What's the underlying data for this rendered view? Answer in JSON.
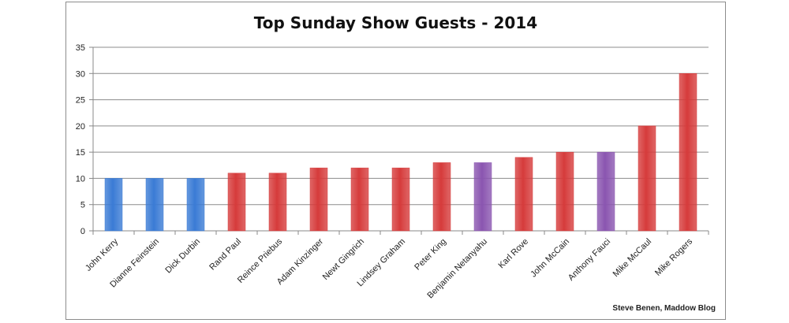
{
  "chart_data": {
    "type": "bar",
    "title": "Top Sunday Show Guests - 2014",
    "credit": "Steve Benen, Maddow Blog",
    "categories": [
      "John Kerry",
      "Dianne Feinstein",
      "Dick Durbin",
      "Rand Paul",
      "Reince Priebus",
      "Adam Kinzinger",
      "Newt Gingrich",
      "Lindsey Graham",
      "Peter King",
      "Benjamin Netanyahu",
      "Karl Rove",
      "John McCain",
      "Anthony Fauci",
      "Mike McCaul",
      "Mike Rogers"
    ],
    "values": [
      10,
      10,
      10,
      11,
      11,
      12,
      12,
      12,
      13,
      13,
      14,
      15,
      15,
      20,
      30
    ],
    "bar_colors": [
      "#3a7bd5",
      "#3a7bd5",
      "#3a7bd5",
      "#d63b3b",
      "#d63b3b",
      "#d63b3b",
      "#d63b3b",
      "#d63b3b",
      "#d63b3b",
      "#8a55b0",
      "#d63b3b",
      "#d63b3b",
      "#8a55b0",
      "#d63b3b",
      "#d63b3b"
    ],
    "ylim": [
      0,
      35
    ],
    "yticks": [
      0,
      5,
      10,
      15,
      20,
      25,
      30,
      35
    ],
    "grid": true,
    "legend": "none"
  }
}
